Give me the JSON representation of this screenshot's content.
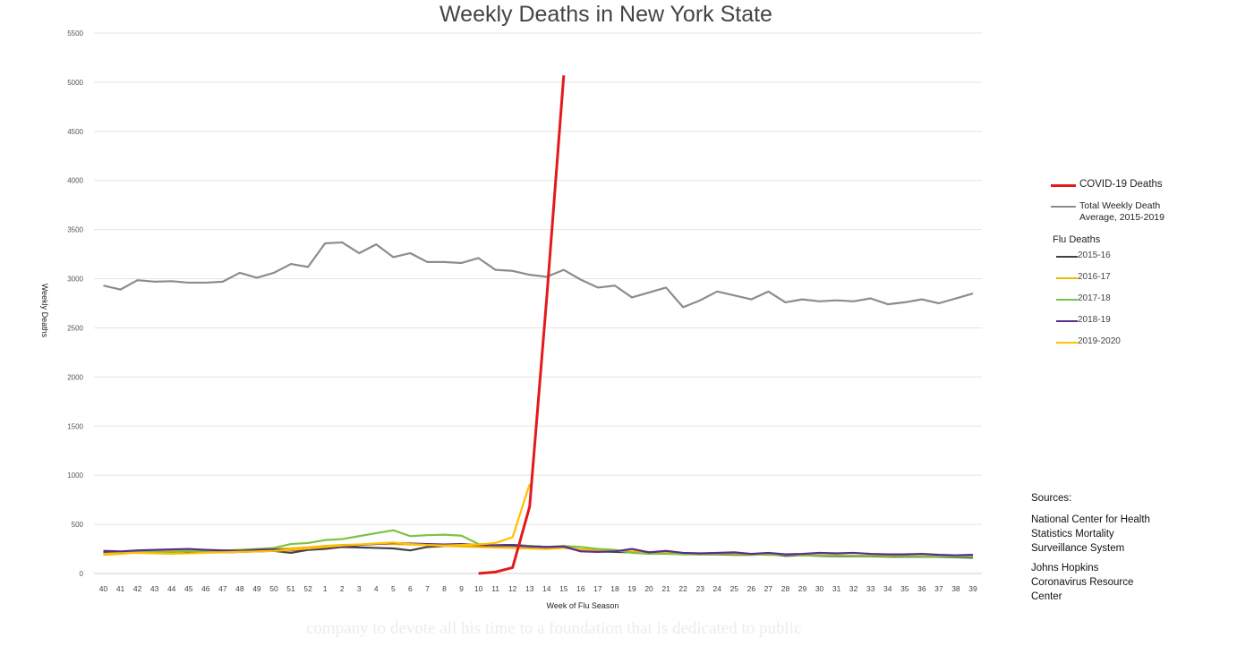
{
  "chart_data": {
    "type": "line",
    "title": "Weekly Deaths in New York State",
    "xlabel": "Week of Flu Season",
    "ylabel": "Weekly Deaths",
    "categories": [
      "40",
      "41",
      "42",
      "43",
      "44",
      "45",
      "46",
      "47",
      "48",
      "49",
      "50",
      "51",
      "52",
      "1",
      "2",
      "3",
      "4",
      "5",
      "6",
      "7",
      "8",
      "9",
      "10",
      "11",
      "12",
      "13",
      "14",
      "15",
      "16",
      "17",
      "18",
      "19",
      "20",
      "21",
      "22",
      "23",
      "24",
      "25",
      "26",
      "27",
      "28",
      "29",
      "30",
      "31",
      "32",
      "33",
      "34",
      "35",
      "36",
      "37",
      "38",
      "39"
    ],
    "ylim": [
      0,
      5500
    ],
    "yticks": [
      0,
      500,
      1000,
      1500,
      2000,
      2500,
      3000,
      3500,
      4000,
      4500,
      5000,
      5500
    ],
    "grid": true,
    "legend_position": "right",
    "series": [
      {
        "name": "Total Weekly Death Average, 2015-2019",
        "color": "#8c8c8c",
        "values": [
          2930,
          2890,
          2985,
          2970,
          2975,
          2960,
          2960,
          2970,
          3060,
          3010,
          3060,
          3150,
          3120,
          3360,
          3370,
          3260,
          3350,
          3220,
          3260,
          3170,
          3170,
          3160,
          3210,
          3090,
          3080,
          3040,
          3020,
          3090,
          2990,
          2910,
          2930,
          2810,
          2860,
          2910,
          2710,
          2780,
          2870,
          2830,
          2790,
          2870,
          2760,
          2790,
          2770,
          2780,
          2770,
          2800,
          2740,
          2760,
          2790,
          2750,
          2800,
          2850
        ]
      },
      {
        "name": "COVID-19 Deaths",
        "color": "#e31a1c",
        "values": [
          null,
          null,
          null,
          null,
          null,
          null,
          null,
          null,
          null,
          null,
          null,
          null,
          null,
          null,
          null,
          null,
          null,
          null,
          null,
          null,
          null,
          null,
          0,
          15,
          60,
          680,
          2800,
          5070,
          null,
          null,
          null,
          null,
          null,
          null,
          null,
          null,
          null,
          null,
          null,
          null,
          null,
          null,
          null,
          null,
          null,
          null,
          null,
          null,
          null,
          null,
          null,
          null
        ]
      },
      {
        "name": "2015-16",
        "color": "#404040",
        "values": [
          220,
          220,
          230,
          230,
          225,
          220,
          215,
          215,
          220,
          225,
          230,
          210,
          240,
          250,
          270,
          265,
          260,
          255,
          235,
          270,
          280,
          285,
          285,
          290,
          290,
          280,
          270,
          275,
          230,
          225,
          220,
          215,
          210,
          205,
          200,
          195,
          195,
          190,
          190,
          195,
          180,
          185,
          180,
          175,
          175,
          175,
          170,
          170,
          170,
          170,
          165,
          160
        ]
      },
      {
        "name": "2016-17",
        "color": "#f5b400",
        "values": [
          190,
          200,
          215,
          225,
          230,
          240,
          240,
          235,
          240,
          245,
          250,
          255,
          265,
          280,
          290,
          295,
          300,
          300,
          295,
          290,
          280,
          275,
          270,
          265,
          260,
          255,
          250,
          260,
          245,
          235,
          230,
          225,
          220,
          210,
          205,
          200,
          200,
          195,
          195,
          190,
          190,
          185,
          185,
          185,
          180,
          180,
          175,
          180,
          175,
          175,
          175,
          170
        ]
      },
      {
        "name": "2017-18",
        "color": "#7dc242",
        "values": [
          200,
          210,
          215,
          220,
          215,
          230,
          225,
          230,
          240,
          250,
          260,
          300,
          310,
          340,
          350,
          380,
          410,
          440,
          380,
          390,
          395,
          385,
          300,
          290,
          280,
          280,
          270,
          280,
          270,
          250,
          240,
          210,
          200,
          200,
          195,
          195,
          200,
          200,
          195,
          190,
          190,
          185,
          185,
          180,
          180,
          180,
          180,
          175,
          175,
          175,
          170,
          170
        ]
      },
      {
        "name": "2018-19",
        "color": "#5b2c8f",
        "values": [
          230,
          225,
          235,
          240,
          245,
          250,
          240,
          235,
          230,
          240,
          245,
          235,
          250,
          265,
          275,
          290,
          300,
          310,
          305,
          300,
          295,
          300,
          290,
          285,
          285,
          275,
          270,
          275,
          225,
          220,
          225,
          250,
          215,
          230,
          210,
          205,
          210,
          215,
          200,
          210,
          195,
          200,
          210,
          205,
          210,
          200,
          195,
          195,
          200,
          190,
          185,
          190
        ]
      },
      {
        "name": "2019-2020",
        "color": "#ffc000",
        "values": [
          200,
          205,
          210,
          205,
          200,
          205,
          210,
          215,
          220,
          225,
          230,
          240,
          255,
          270,
          285,
          295,
          305,
          315,
          300,
          290,
          285,
          290,
          295,
          310,
          370,
          910,
          null,
          null,
          null,
          null,
          null,
          null,
          null,
          null,
          null,
          null,
          null,
          null,
          null,
          null,
          null,
          null,
          null,
          null,
          null,
          null,
          null,
          null,
          null,
          null,
          null,
          null
        ]
      }
    ]
  },
  "legend": {
    "covid": {
      "label": "COVID-19 Deaths",
      "color": "#e31a1c"
    },
    "total": {
      "label_line1": "Total Weekly Death",
      "label_line2": "Average, 2015-2019",
      "color": "#8c8c8c"
    },
    "flu_title": "Flu Deaths",
    "flu": [
      {
        "label": "2015-16",
        "color": "#404040"
      },
      {
        "label": "2016-17",
        "color": "#f5b400"
      },
      {
        "label": "2017-18",
        "color": "#7dc242"
      },
      {
        "label": "2018-19",
        "color": "#5b2c8f"
      },
      {
        "label": "2019-2020",
        "color": "#ffc000"
      }
    ]
  },
  "sources": {
    "title": "Sources:",
    "entry1": [
      "National Center for Health",
      "Statistics Mortality",
      "Surveillance System"
    ],
    "entry2": [
      "Johns Hopkins",
      "Coronavirus Resource",
      "Center"
    ]
  },
  "background_text": {
    "line1": "company to devote all his time to a foundation that is dedicated to public"
  }
}
